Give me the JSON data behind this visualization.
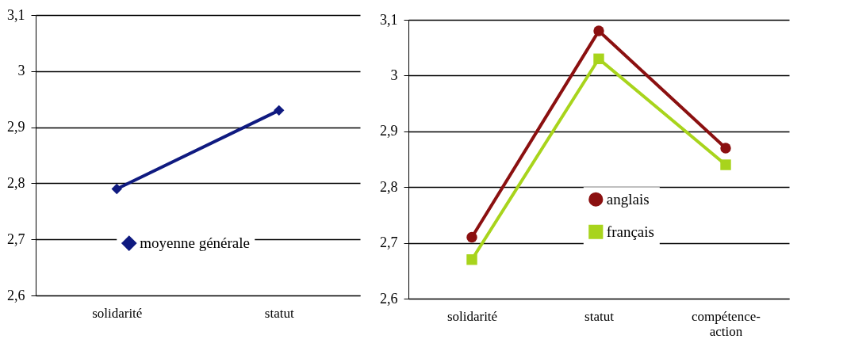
{
  "chart_data": [
    {
      "type": "line",
      "categories": [
        "solidarité",
        "statut"
      ],
      "series": [
        {
          "name": "moyenne générale",
          "color": "#0f1a80",
          "marker": "diamond",
          "values": [
            2.79,
            2.93
          ]
        }
      ],
      "ylim": [
        2.6,
        3.1
      ],
      "yticks": [
        {
          "value": 2.6,
          "label": "2,6"
        },
        {
          "value": 2.7,
          "label": "2,7"
        },
        {
          "value": 2.8,
          "label": "2,8"
        },
        {
          "value": 2.9,
          "label": "2,9"
        },
        {
          "value": 3,
          "label": "3"
        },
        {
          "value": 3.1,
          "label": "3,1"
        }
      ],
      "grid": "y",
      "legend": "bottom right"
    },
    {
      "type": "line",
      "categories": [
        "solidarité",
        "statut",
        "compétence-action"
      ],
      "series": [
        {
          "name": "anglais",
          "color": "#8b1010",
          "marker": "circle",
          "values": [
            2.71,
            3.08,
            2.87
          ]
        },
        {
          "name": "français",
          "color": "#a8d41c",
          "marker": "square",
          "values": [
            2.67,
            3.03,
            2.84
          ]
        }
      ],
      "ylim": [
        2.6,
        3.1
      ],
      "yticks": [
        {
          "value": 2.6,
          "label": "2,6"
        },
        {
          "value": 2.7,
          "label": "2,7"
        },
        {
          "value": 2.8,
          "label": "2,8"
        },
        {
          "value": 2.9,
          "label": "2,9"
        },
        {
          "value": 3,
          "label": "3"
        },
        {
          "value": 3.1,
          "label": "3,1"
        }
      ],
      "grid": "y",
      "legend": "center"
    }
  ]
}
